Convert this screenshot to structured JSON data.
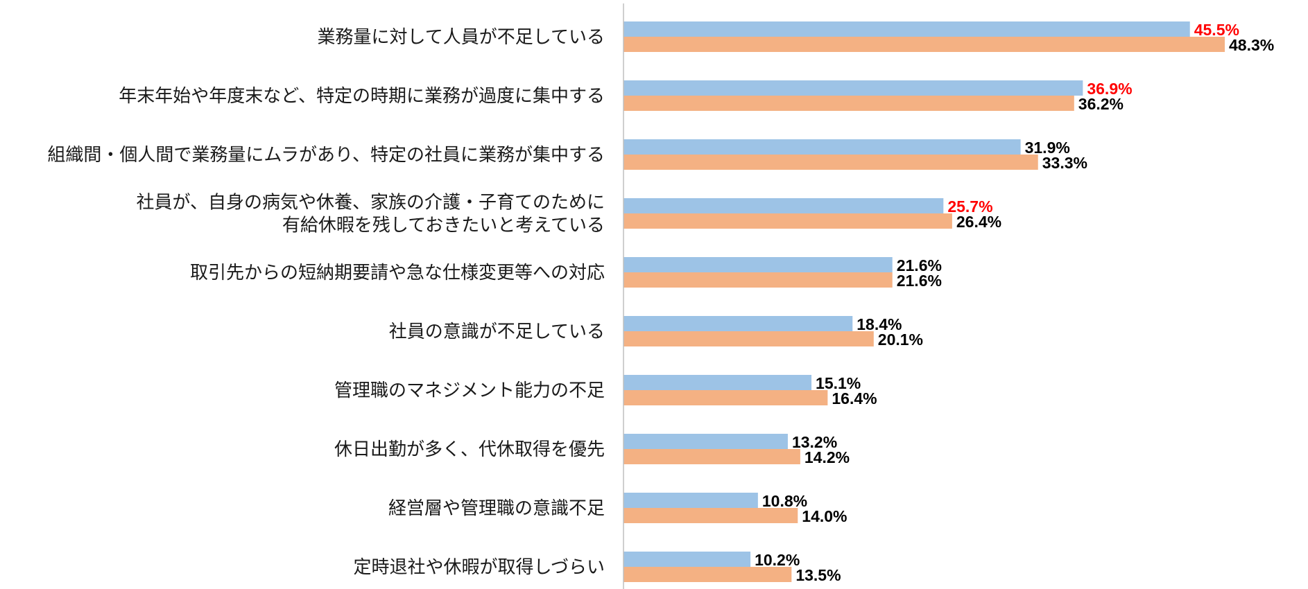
{
  "chart_data": {
    "type": "bar",
    "orientation": "horizontal",
    "title": "",
    "xlabel": "",
    "ylabel": "",
    "xlim": [
      0,
      50
    ],
    "grid": false,
    "legend": "none",
    "categories": [
      [
        "業務量に対して人員が不足している"
      ],
      [
        "年末年始や年度末など、特定の時期に業務が過度に集中する"
      ],
      [
        "組織間・個人間で業務量にムラがあり、特定の社員に業務が集中する"
      ],
      [
        "社員が、自身の病気や休養、家族の介護・子育てのために",
        "有給休暇を残しておきたいと考えている"
      ],
      [
        "取引先からの短納期要請や急な仕様変更等への対応"
      ],
      [
        "社員の意識が不足している"
      ],
      [
        "管理職のマネジメント能力の不足"
      ],
      [
        "休日出勤が多く、代休取得を優先"
      ],
      [
        "経営層や管理職の意識不足"
      ],
      [
        "定時退社や休暇が取得しづらい"
      ]
    ],
    "series": [
      {
        "name": "series-1",
        "color": "#9dc3e6",
        "values": [
          45.5,
          36.9,
          31.9,
          25.7,
          21.6,
          18.4,
          15.1,
          13.2,
          10.8,
          10.2
        ],
        "labels": [
          "45.5%",
          "36.9%",
          "31.9%",
          "25.7%",
          "21.6%",
          "18.4%",
          "15.1%",
          "13.2%",
          "10.8%",
          "10.2%"
        ],
        "label_colors": [
          "#ff0000",
          "#ff0000",
          "#000000",
          "#ff0000",
          "#000000",
          "#000000",
          "#000000",
          "#000000",
          "#000000",
          "#000000"
        ]
      },
      {
        "name": "series-2",
        "color": "#f4b183",
        "values": [
          48.3,
          36.2,
          33.3,
          26.4,
          21.6,
          20.1,
          16.4,
          14.2,
          14.0,
          13.5
        ],
        "labels": [
          "48.3%",
          "36.2%",
          "33.3%",
          "26.4%",
          "21.6%",
          "20.1%",
          "16.4%",
          "14.2%",
          "14.0%",
          "13.5%"
        ],
        "label_colors": [
          "#000000",
          "#000000",
          "#000000",
          "#000000",
          "#000000",
          "#000000",
          "#000000",
          "#000000",
          "#000000",
          "#000000"
        ]
      }
    ],
    "axis_color": "#bfbfbf"
  }
}
